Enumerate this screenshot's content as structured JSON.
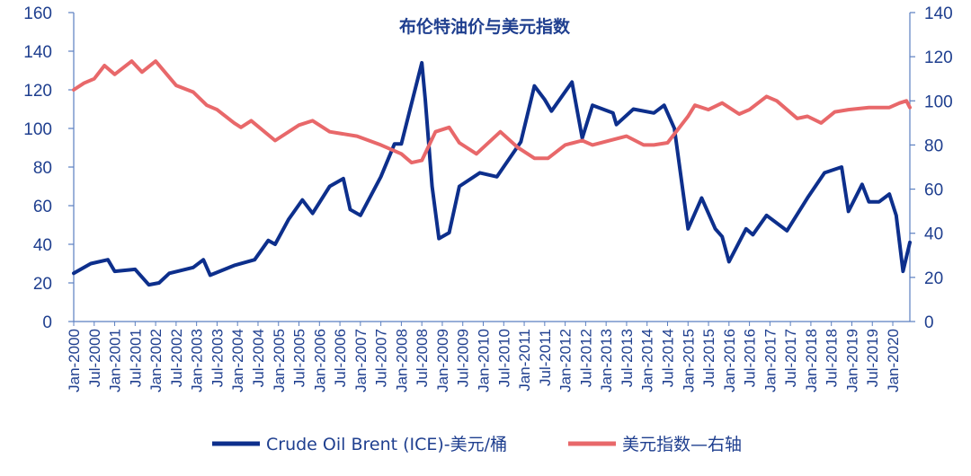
{
  "chart_data": {
    "type": "line",
    "title": "布伦特油价与美元指数",
    "x_start": "Jan-2000",
    "x_end": "Jun-2020",
    "x_tick_labels": [
      "Jan-2000",
      "Jul-2000",
      "Jan-2001",
      "Jul-2001",
      "Jan-2002",
      "Jul-2002",
      "Jan-2003",
      "Jul-2003",
      "Jan-2004",
      "Jul-2004",
      "Jan-2005",
      "Jul-2005",
      "Jan-2006",
      "Jul-2006",
      "Jan-2007",
      "Jul-2007",
      "Jan-2008",
      "Jul-2008",
      "Jan-2009",
      "Jul-2009",
      "Jan-2010",
      "Jul-2010",
      "Jan-2011",
      "Jul-2011",
      "Jan-2012",
      "Jul-2012",
      "Jan-2013",
      "Jul-2013",
      "Jan-2014",
      "Jul-2014",
      "Jan-2015",
      "Jul-2015",
      "Jan-2016",
      "Jul-2016",
      "Jan-2017",
      "Jul-2017",
      "Jan-2018",
      "Jul-2018",
      "Jan-2019",
      "Jul-2019",
      "Jan-2020"
    ],
    "y_left": {
      "min": 0,
      "max": 160,
      "ticks": [
        "0",
        "20",
        "40",
        "60",
        "80",
        "100",
        "120",
        "140",
        "160"
      ]
    },
    "y_right": {
      "min": 0,
      "max": 140,
      "ticks": [
        "0",
        "20",
        "40",
        "60",
        "80",
        "100",
        "120",
        "140"
      ]
    },
    "grid": false,
    "legend_position": "bottom",
    "series": [
      {
        "name": "Crude Oil Brent (ICE)-美元/桶",
        "axis": "left",
        "color": "#0d2f8c",
        "anchors": [
          [
            "Jan-2000",
            25
          ],
          [
            "Jun-2000",
            30
          ],
          [
            "Nov-2000",
            32
          ],
          [
            "Jan-2001",
            26
          ],
          [
            "Jul-2001",
            27
          ],
          [
            "Nov-2001",
            19
          ],
          [
            "Feb-2002",
            20
          ],
          [
            "May-2002",
            25
          ],
          [
            "Dec-2002",
            28
          ],
          [
            "Mar-2003",
            32
          ],
          [
            "May-2003",
            24
          ],
          [
            "Dec-2003",
            29
          ],
          [
            "Jun-2004",
            32
          ],
          [
            "Oct-2004",
            42
          ],
          [
            "Dec-2004",
            40
          ],
          [
            "Apr-2005",
            53
          ],
          [
            "Aug-2005",
            63
          ],
          [
            "Nov-2005",
            56
          ],
          [
            "Apr-2006",
            70
          ],
          [
            "Aug-2006",
            74
          ],
          [
            "Oct-2006",
            58
          ],
          [
            "Jan-2007",
            55
          ],
          [
            "Jul-2007",
            75
          ],
          [
            "Nov-2007",
            92
          ],
          [
            "Jan-2008",
            92
          ],
          [
            "Jul-2008",
            134
          ],
          [
            "Aug-2008",
            115
          ],
          [
            "Oct-2008",
            70
          ],
          [
            "Dec-2008",
            43
          ],
          [
            "Mar-2009",
            46
          ],
          [
            "Jun-2009",
            70
          ],
          [
            "Dec-2009",
            77
          ],
          [
            "May-2010",
            75
          ],
          [
            "Dec-2010",
            93
          ],
          [
            "Apr-2011",
            122
          ],
          [
            "Jul-2011",
            115
          ],
          [
            "Sep-2011",
            109
          ],
          [
            "Mar-2012",
            124
          ],
          [
            "Jun-2012",
            95
          ],
          [
            "Sep-2012",
            112
          ],
          [
            "Dec-2012",
            110
          ],
          [
            "Mar-2013",
            108
          ],
          [
            "Apr-2013",
            102
          ],
          [
            "Sep-2013",
            110
          ],
          [
            "Mar-2014",
            108
          ],
          [
            "Jun-2014",
            112
          ],
          [
            "Sep-2014",
            100
          ],
          [
            "Jan-2015",
            48
          ],
          [
            "May-2015",
            64
          ],
          [
            "Jul-2015",
            56
          ],
          [
            "Sep-2015",
            48
          ],
          [
            "Nov-2015",
            44
          ],
          [
            "Jan-2016",
            31
          ],
          [
            "Jun-2016",
            48
          ],
          [
            "Aug-2016",
            45
          ],
          [
            "Dec-2016",
            55
          ],
          [
            "Jun-2017",
            47
          ],
          [
            "Dec-2017",
            64
          ],
          [
            "May-2018",
            77
          ],
          [
            "Oct-2018",
            80
          ],
          [
            "Dec-2018",
            57
          ],
          [
            "Apr-2019",
            71
          ],
          [
            "Jun-2019",
            62
          ],
          [
            "Sep-2019",
            62
          ],
          [
            "Dec-2019",
            66
          ],
          [
            "Feb-2020",
            55
          ],
          [
            "Apr-2020",
            26
          ],
          [
            "Jun-2020",
            41
          ]
        ]
      },
      {
        "name": "美元指数—右轴",
        "axis": "right",
        "color": "#e8686a",
        "anchors": [
          [
            "Jan-2000",
            105
          ],
          [
            "Apr-2000",
            108
          ],
          [
            "Jul-2000",
            110
          ],
          [
            "Oct-2000",
            116
          ],
          [
            "Jan-2001",
            112
          ],
          [
            "Jun-2001",
            118
          ],
          [
            "Sep-2001",
            113
          ],
          [
            "Jan-2002",
            118
          ],
          [
            "Jul-2002",
            107
          ],
          [
            "Dec-2002",
            104
          ],
          [
            "Apr-2003",
            98
          ],
          [
            "Jul-2003",
            96
          ],
          [
            "Dec-2003",
            90
          ],
          [
            "Feb-2004",
            88
          ],
          [
            "May-2004",
            91
          ],
          [
            "Dec-2004",
            82
          ],
          [
            "Jul-2005",
            89
          ],
          [
            "Nov-2005",
            91
          ],
          [
            "Apr-2006",
            86
          ],
          [
            "Dec-2006",
            84
          ],
          [
            "Jul-2007",
            80
          ],
          [
            "Jan-2008",
            76
          ],
          [
            "Apr-2008",
            72
          ],
          [
            "Jul-2008",
            73
          ],
          [
            "Nov-2008",
            86
          ],
          [
            "Mar-2009",
            88
          ],
          [
            "Jun-2009",
            81
          ],
          [
            "Nov-2009",
            76
          ],
          [
            "Jun-2010",
            86
          ],
          [
            "Nov-2010",
            79
          ],
          [
            "Apr-2011",
            74
          ],
          [
            "Aug-2011",
            74
          ],
          [
            "Jan-2012",
            80
          ],
          [
            "Jun-2012",
            82
          ],
          [
            "Sep-2012",
            80
          ],
          [
            "Jul-2013",
            84
          ],
          [
            "Dec-2013",
            80
          ],
          [
            "Mar-2014",
            80
          ],
          [
            "Jul-2014",
            81
          ],
          [
            "Jan-2015",
            93
          ],
          [
            "Mar-2015",
            98
          ],
          [
            "Jul-2015",
            96
          ],
          [
            "Nov-2015",
            99
          ],
          [
            "Apr-2016",
            94
          ],
          [
            "Jul-2016",
            96
          ],
          [
            "Dec-2016",
            102
          ],
          [
            "Mar-2017",
            100
          ],
          [
            "Sep-2017",
            92
          ],
          [
            "Dec-2017",
            93
          ],
          [
            "Apr-2018",
            90
          ],
          [
            "Aug-2018",
            95
          ],
          [
            "Dec-2018",
            96
          ],
          [
            "Jun-2019",
            97
          ],
          [
            "Dec-2019",
            97
          ],
          [
            "Mar-2020",
            99
          ],
          [
            "May-2020",
            100
          ],
          [
            "Jun-2020",
            97
          ]
        ]
      }
    ]
  }
}
